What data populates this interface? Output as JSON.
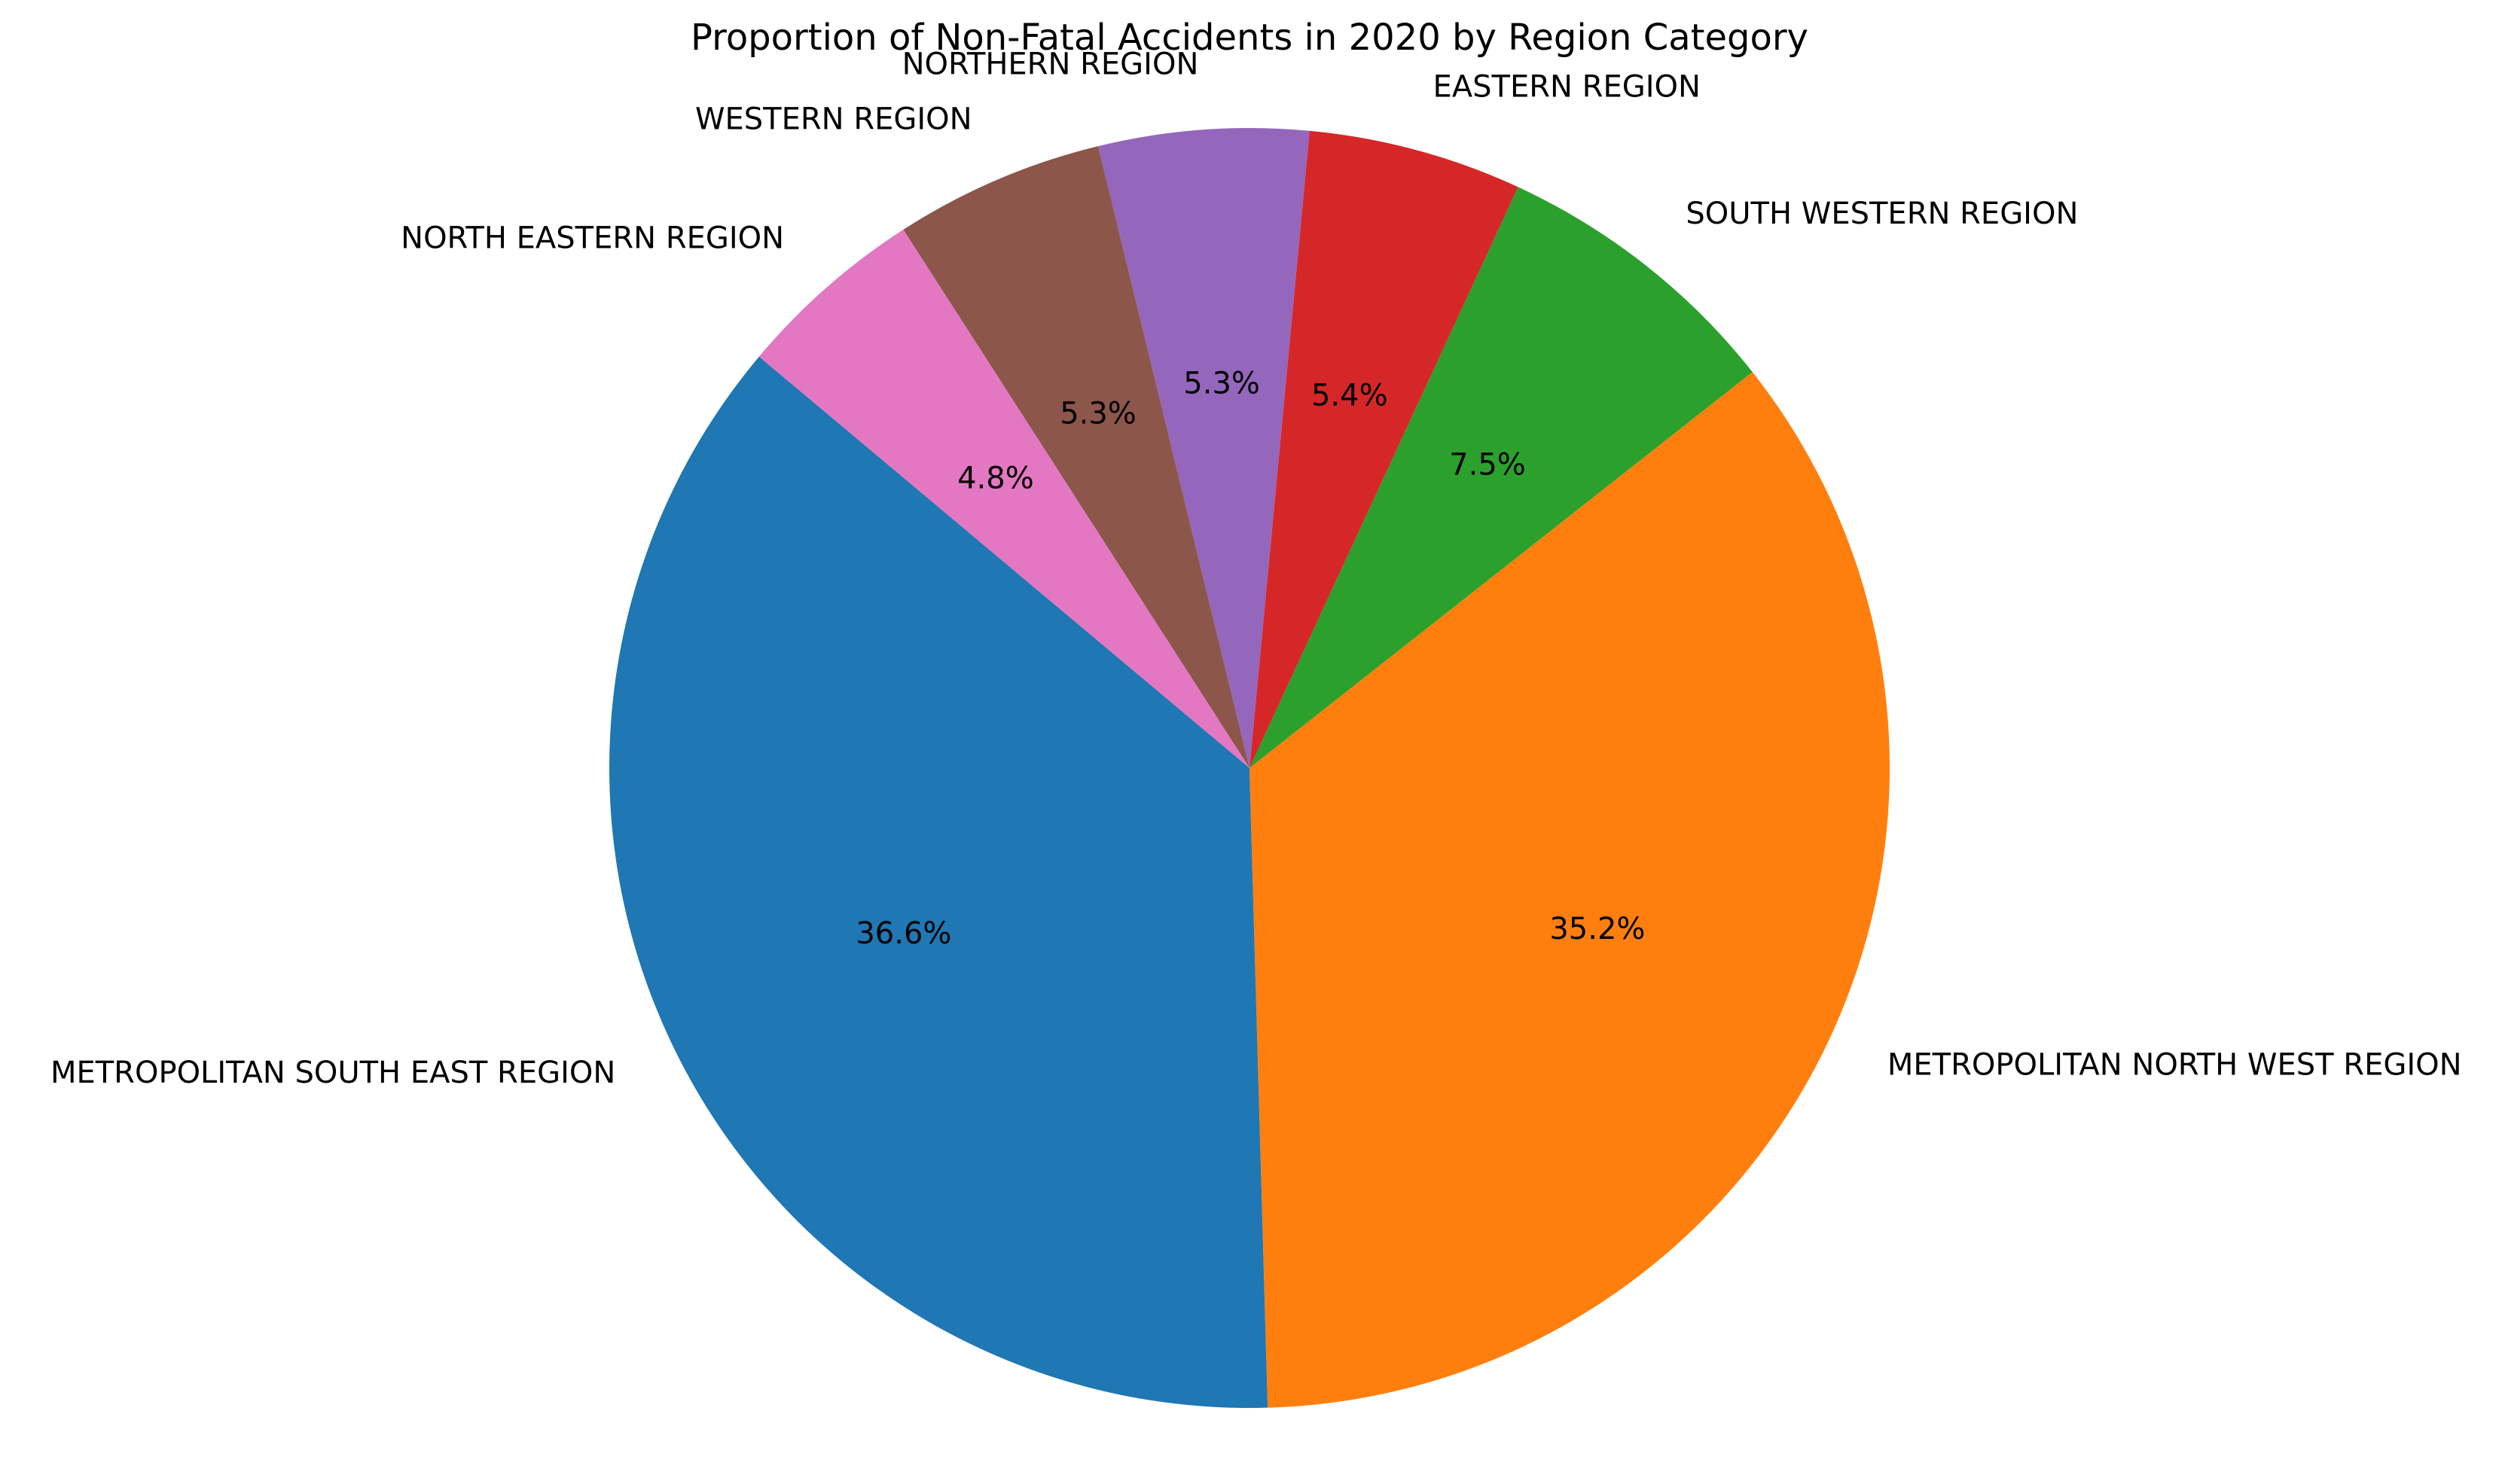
{
  "chart_data": {
    "type": "pie",
    "title": "Proportion of Non-Fatal Accidents in 2020 by Region Category",
    "start_angle": 140,
    "direction": "counterclockwise",
    "autopct_format": "{:.1f}%",
    "slices": [
      {
        "label": "METROPOLITAN SOUTH EAST REGION",
        "value": 36.6,
        "color": "#1f77b4"
      },
      {
        "label": "METROPOLITAN NORTH WEST REGION",
        "value": 35.2,
        "color": "#ff7f0e"
      },
      {
        "label": "SOUTH WESTERN REGION",
        "value": 7.5,
        "color": "#2ca02c"
      },
      {
        "label": "EASTERN REGION",
        "value": 5.4,
        "color": "#d62728"
      },
      {
        "label": "NORTHERN REGION",
        "value": 5.3,
        "color": "#9467bd"
      },
      {
        "label": "WESTERN REGION",
        "value": 5.3,
        "color": "#8c564b"
      },
      {
        "label": "NORTH EASTERN REGION",
        "value": 4.8,
        "color": "#e377c2"
      }
    ]
  }
}
